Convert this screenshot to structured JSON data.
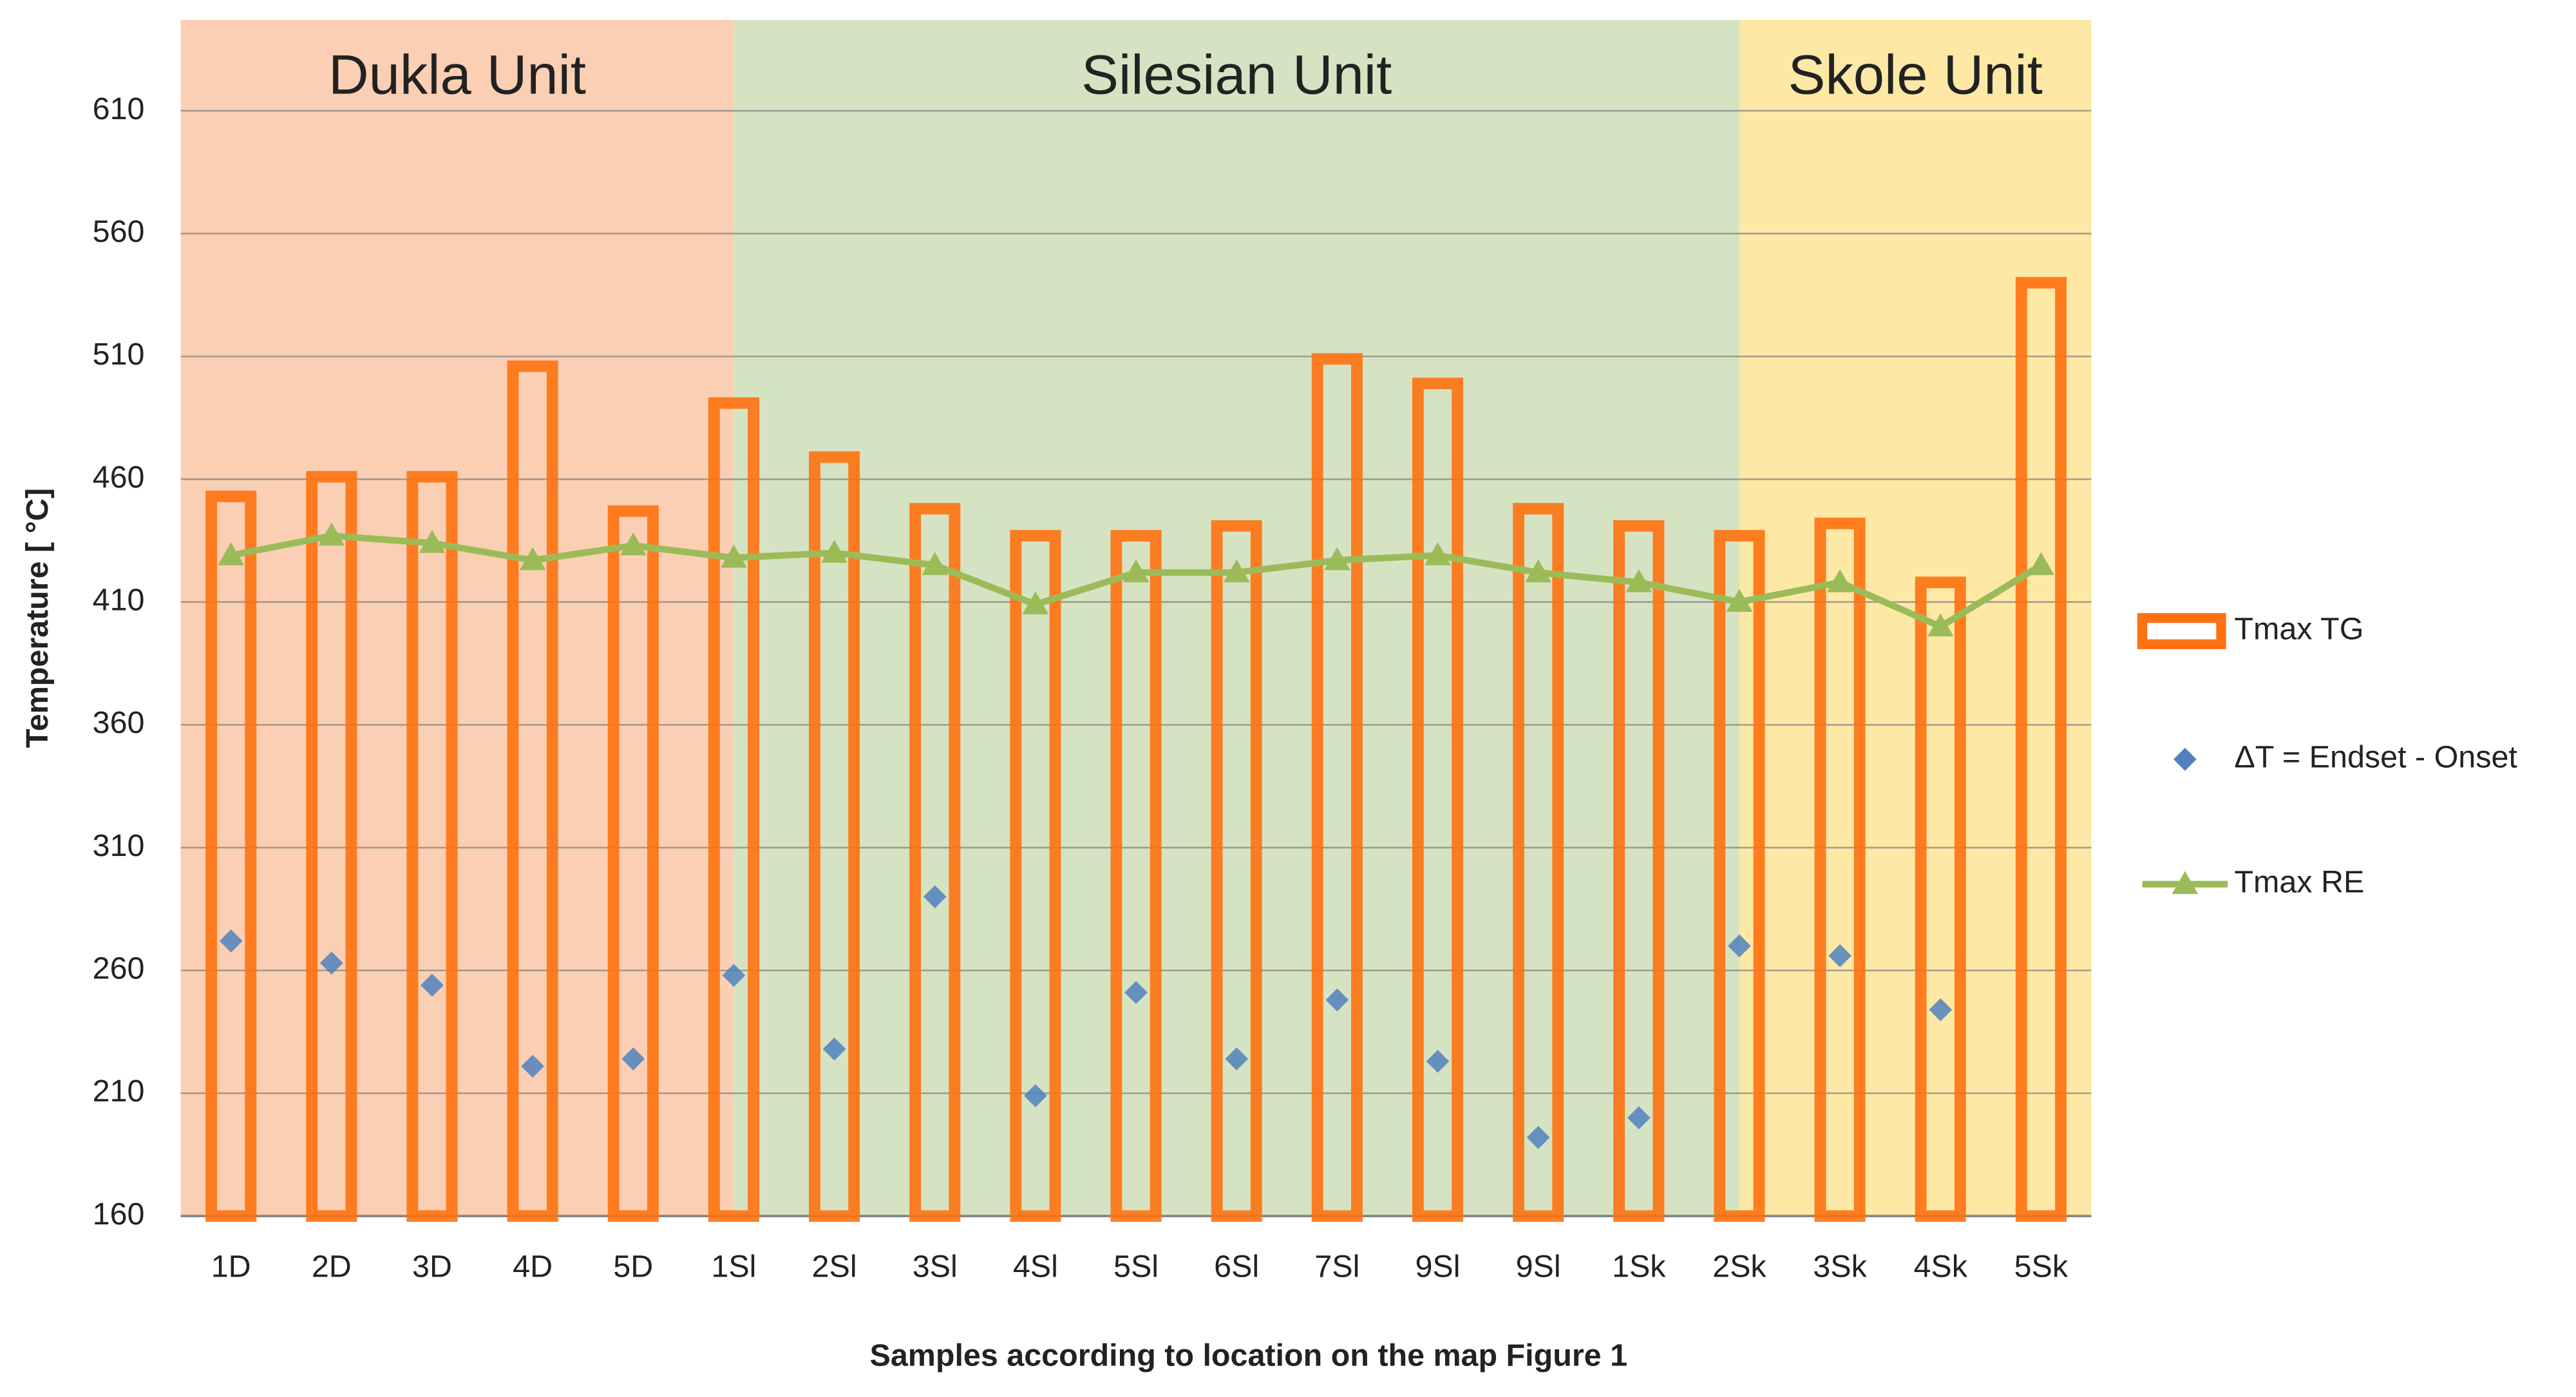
{
  "chart_data": {
    "type": "bar_line_scatter",
    "x_label": "Samples according to location on the map  Figure 1",
    "y_label": "Temperature [ °C]",
    "categories": [
      "1D",
      "2D",
      "3D",
      "4D",
      "5D",
      "1Sl",
      "2Sl",
      "3Sl",
      "4Sl",
      "5Sl",
      "6Sl",
      "7Sl",
      "9Sl",
      "9Sl",
      "1Sk",
      "2Sk",
      "3Sk",
      "4Sk",
      "5Sk"
    ],
    "series": [
      {
        "name": "Tmax TG",
        "kind": "hollow-bar",
        "color": "#ff7110",
        "values": [
          453,
          461,
          461,
          506,
          447,
          491,
          469,
          448,
          437,
          437,
          441,
          509,
          499,
          448,
          441,
          437,
          442,
          418,
          540
        ]
      },
      {
        "name": "ΔT = Endset - Onset",
        "kind": "marker",
        "color": "#4f81bd",
        "values": [
          272,
          263,
          254,
          221,
          224,
          258,
          228,
          290,
          209,
          251,
          224,
          248,
          223,
          192,
          200,
          270,
          266,
          244,
          null
        ]
      },
      {
        "name": "Tmax  RE",
        "kind": "line",
        "color": "#9bbb59",
        "values": [
          429,
          437,
          434,
          427,
          433,
          428,
          430,
          425,
          409,
          422,
          422,
          427,
          429,
          422,
          418,
          410,
          418,
          400,
          425
        ]
      }
    ],
    "regions": [
      {
        "label": "Dukla Unit",
        "from": "1D",
        "to": "1Sl",
        "color": "#fbcfb3"
      },
      {
        "label": "Silesian Unit",
        "from": "1Sl",
        "to": "2Sk",
        "color": "#d6e3c3"
      },
      {
        "label": "Skole Unit",
        "from": "2Sk",
        "to": "5Sk",
        "color": "#fde8a6"
      }
    ],
    "ylim": [
      160,
      647
    ],
    "yticks": [
      160,
      210,
      260,
      310,
      360,
      410,
      460,
      510,
      560,
      610
    ],
    "grid": true,
    "legend": "right"
  }
}
